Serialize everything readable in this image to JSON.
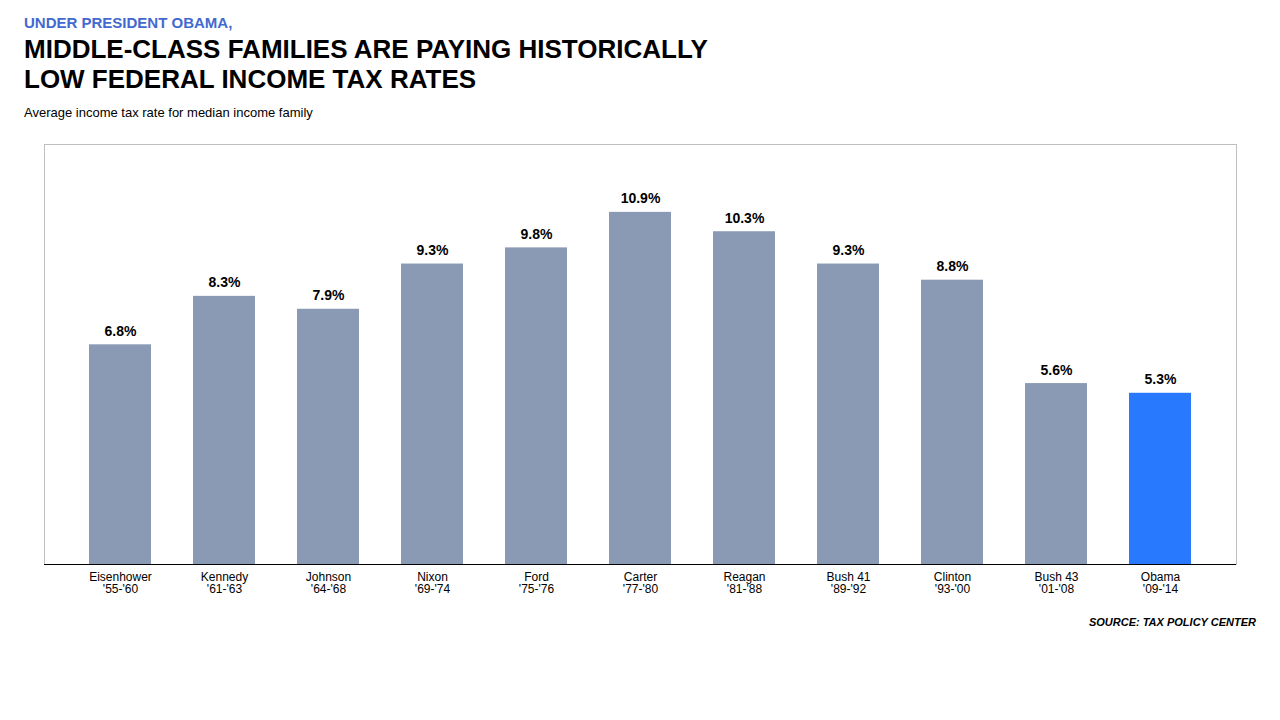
{
  "chart_data": {
    "type": "bar",
    "subtitle": "UNDER PRESIDENT OBAMA,",
    "title": "MIDDLE-CLASS FAMILIES ARE PAYING HISTORICALLY\nLOW FEDERAL INCOME TAX RATES",
    "ylabel": "Average income tax rate for median income family",
    "source": "SOURCE: TAX POLICY CENTER",
    "categories": [
      "Eisenhower\n'55-'60",
      "Kennedy\n'61-'63",
      "Johnson\n'64-'68",
      "Nixon\n'69-'74",
      "Ford\n'75-'76",
      "Carter\n'77-'80",
      "Reagan\n'81-'88",
      "Bush 41\n'89-'92",
      "Clinton\n'93-'00",
      "Bush 43\n'01-'08",
      "Obama\n'09-'14"
    ],
    "values": [
      6.8,
      8.3,
      7.9,
      9.3,
      9.8,
      10.9,
      10.3,
      9.3,
      8.8,
      5.6,
      5.3
    ],
    "value_labels": [
      "6.8%",
      "8.3%",
      "7.9%",
      "9.3%",
      "9.8%",
      "10.9%",
      "10.3%",
      "9.3%",
      "8.8%",
      "5.6%",
      "5.3%"
    ],
    "colors": [
      "#8a9ab5",
      "#8a9ab5",
      "#8a9ab5",
      "#8a9ab5",
      "#8a9ab5",
      "#8a9ab5",
      "#8a9ab5",
      "#8a9ab5",
      "#8a9ab5",
      "#8a9ab5",
      "#2979ff"
    ],
    "ylim": [
      0,
      13
    ],
    "data_labels": true,
    "tick_labels": "x",
    "grid": false
  }
}
